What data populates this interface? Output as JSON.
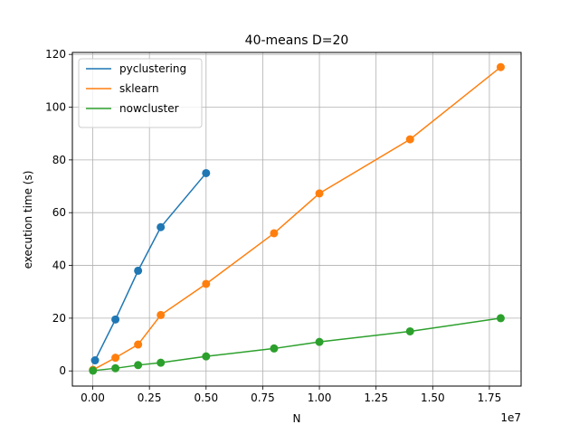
{
  "chart_data": {
    "type": "line",
    "title": "40-means D=20",
    "xlabel": "N",
    "ylabel": "execution time (s)",
    "x_offset_label": "1e7",
    "xlim": [
      -0.09,
      1.89
    ],
    "ylim": [
      -5.75,
      120.75
    ],
    "x_ticks": [
      0.0,
      0.25,
      0.5,
      0.75,
      1.0,
      1.25,
      1.5,
      1.75
    ],
    "x_tick_labels": [
      "0.00",
      "0.25",
      "0.50",
      "0.75",
      "1.00",
      "1.25",
      "1.50",
      "1.75"
    ],
    "y_ticks": [
      0,
      20,
      40,
      60,
      80,
      100,
      120
    ],
    "y_tick_labels": [
      "0",
      "20",
      "40",
      "60",
      "80",
      "100",
      "120"
    ],
    "grid": true,
    "legend_position": "top-left",
    "series": [
      {
        "name": "pyclustering",
        "color": "#1f77b4",
        "x": [
          0.01,
          0.1,
          0.2,
          0.3,
          0.5
        ],
        "y": [
          4.0,
          19.5,
          38.0,
          54.5,
          75.0
        ]
      },
      {
        "name": "sklearn",
        "color": "#ff7f0e",
        "x": [
          0.001,
          0.1,
          0.2,
          0.3,
          0.5,
          0.8,
          1.0,
          1.4,
          1.8
        ],
        "y": [
          0.4,
          5.0,
          10.0,
          21.2,
          33.0,
          52.2,
          67.3,
          87.8,
          115.2
        ]
      },
      {
        "name": "nowcluster",
        "color": "#2ca02c",
        "x": [
          0.001,
          0.1,
          0.2,
          0.3,
          0.5,
          0.8,
          1.0,
          1.4,
          1.8
        ],
        "y": [
          0.1,
          1.0,
          2.2,
          3.1,
          5.5,
          8.5,
          11.0,
          15.0,
          20.0
        ]
      }
    ]
  }
}
